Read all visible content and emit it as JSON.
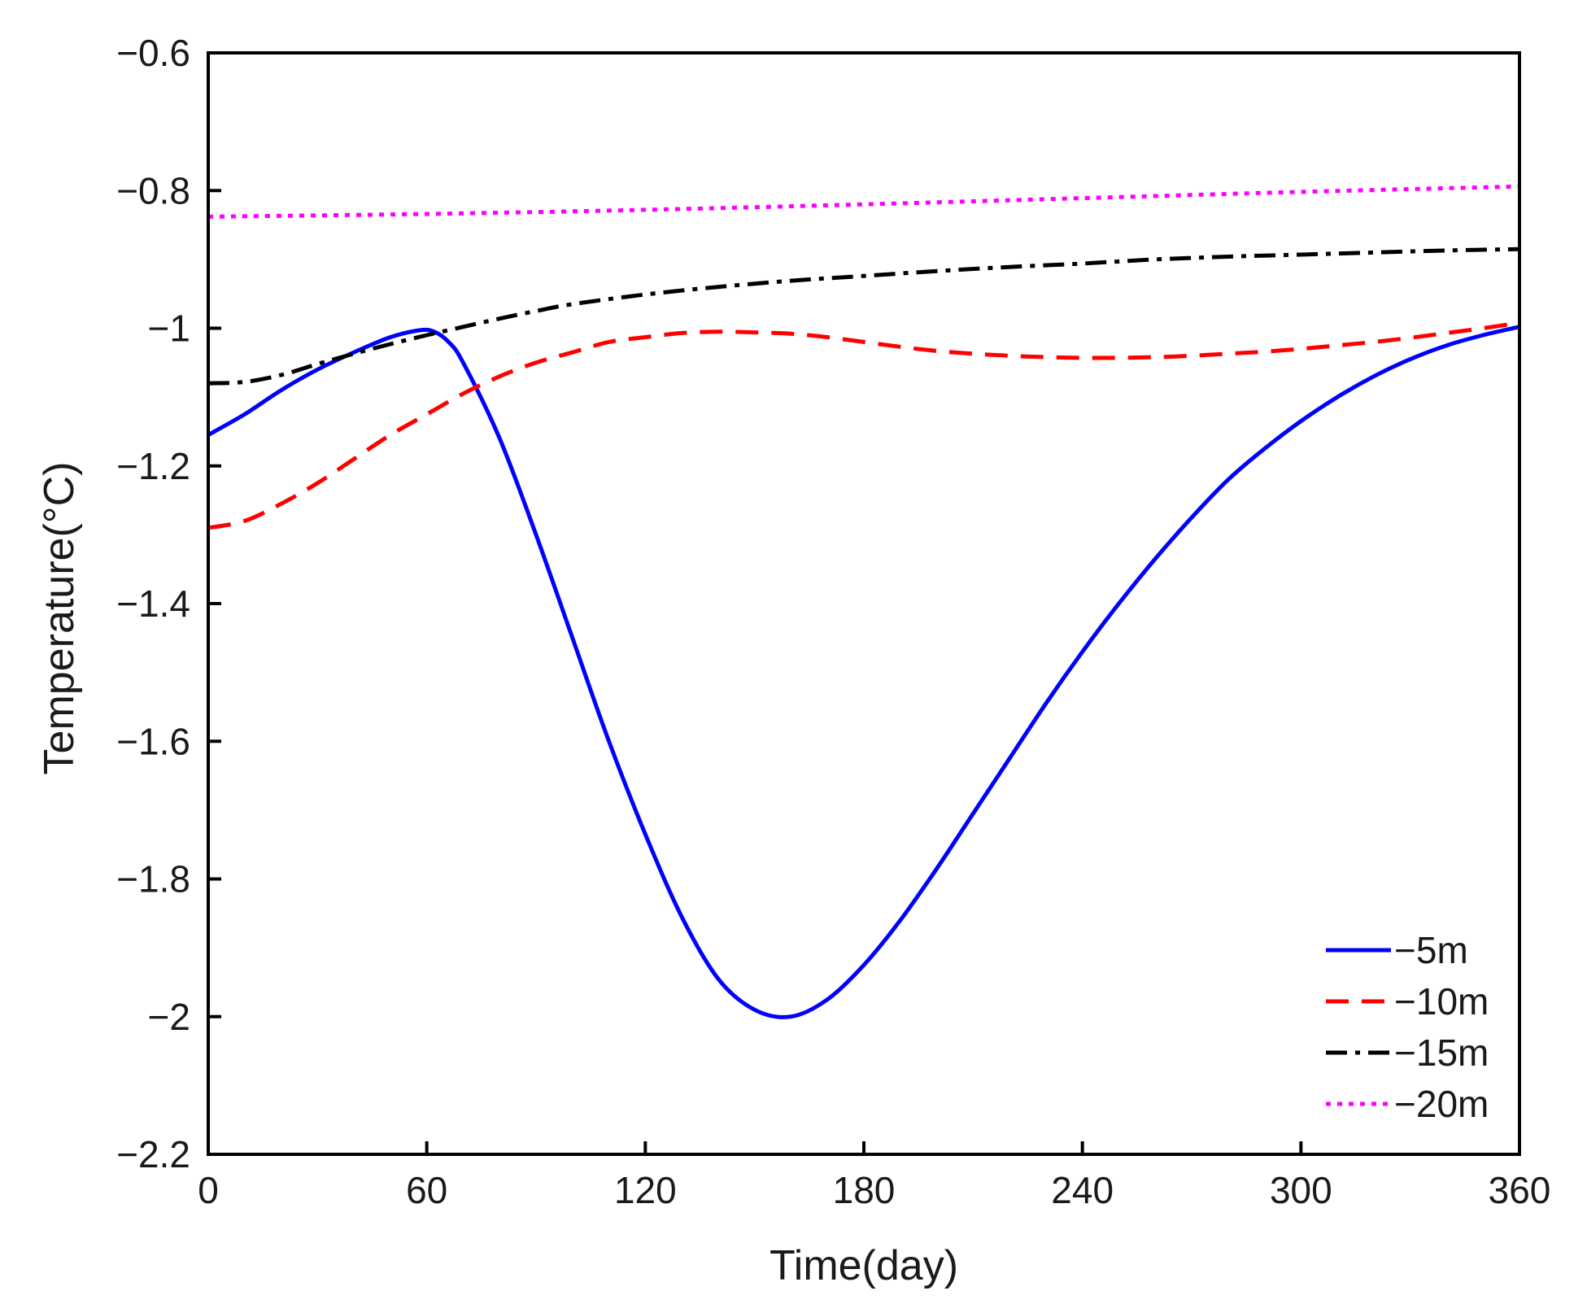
{
  "chart_data": {
    "type": "line",
    "title": "",
    "xlabel": "Time(day)",
    "ylabel": "Temperature(°C)",
    "xlim": [
      0,
      360
    ],
    "ylim": [
      -2.2,
      -0.6
    ],
    "xticks": [
      0,
      60,
      120,
      180,
      240,
      300,
      360
    ],
    "xtick_labels": [
      "0",
      "60",
      "120",
      "180",
      "240",
      "300",
      "360"
    ],
    "yticks": [
      -0.6,
      -0.8,
      -1.0,
      -1.2,
      -1.4,
      -1.6,
      -1.8,
      -2.0,
      -2.2
    ],
    "ytick_labels": [
      "−0.6",
      "−0.8",
      "−1",
      "−1.2",
      "−1.4",
      "−1.6",
      "−1.8",
      "−2",
      "−2.2"
    ],
    "grid": false,
    "legend_position": "bottom-right",
    "series": [
      {
        "name": "−5m",
        "color": "#0000ff",
        "style": "solid",
        "x": [
          0,
          10,
          20,
          30,
          40,
          50,
          58,
          62,
          66,
          70,
          80,
          90,
          100,
          110,
          120,
          130,
          140,
          150,
          160,
          170,
          180,
          190,
          200,
          210,
          220,
          230,
          240,
          250,
          260,
          270,
          280,
          290,
          300,
          310,
          320,
          330,
          340,
          350,
          360
        ],
        "y": [
          -1.155,
          -1.125,
          -1.09,
          -1.06,
          -1.035,
          -1.013,
          -1.003,
          -1.005,
          -1.02,
          -1.05,
          -1.16,
          -1.3,
          -1.45,
          -1.6,
          -1.735,
          -1.855,
          -1.945,
          -1.99,
          -2.0,
          -1.975,
          -1.925,
          -1.86,
          -1.785,
          -1.705,
          -1.625,
          -1.545,
          -1.47,
          -1.4,
          -1.335,
          -1.275,
          -1.22,
          -1.175,
          -1.135,
          -1.1,
          -1.07,
          -1.045,
          -1.025,
          -1.01,
          -0.998
        ]
      },
      {
        "name": "−10m",
        "color": "#ff0000",
        "style": "dashed",
        "x": [
          0,
          10,
          20,
          30,
          40,
          50,
          60,
          70,
          80,
          90,
          100,
          110,
          120,
          130,
          140,
          150,
          160,
          170,
          180,
          190,
          200,
          210,
          220,
          230,
          240,
          250,
          260,
          270,
          280,
          290,
          300,
          310,
          320,
          330,
          340,
          350,
          360
        ],
        "y": [
          -1.29,
          -1.28,
          -1.255,
          -1.225,
          -1.19,
          -1.155,
          -1.125,
          -1.095,
          -1.07,
          -1.05,
          -1.035,
          -1.02,
          -1.013,
          -1.007,
          -1.005,
          -1.006,
          -1.008,
          -1.013,
          -1.02,
          -1.027,
          -1.033,
          -1.037,
          -1.04,
          -1.042,
          -1.043,
          -1.043,
          -1.042,
          -1.04,
          -1.037,
          -1.034,
          -1.03,
          -1.025,
          -1.02,
          -1.014,
          -1.007,
          -1.0,
          -0.992
        ]
      },
      {
        "name": "−15m",
        "color": "#000000",
        "style": "dashdot",
        "x": [
          0,
          10,
          20,
          30,
          40,
          50,
          60,
          70,
          80,
          90,
          100,
          120,
          140,
          160,
          180,
          200,
          220,
          240,
          260,
          280,
          300,
          320,
          340,
          360
        ],
        "y": [
          -1.08,
          -1.078,
          -1.068,
          -1.052,
          -1.037,
          -1.023,
          -1.01,
          -0.998,
          -0.986,
          -0.975,
          -0.965,
          -0.951,
          -0.94,
          -0.931,
          -0.924,
          -0.917,
          -0.911,
          -0.906,
          -0.9,
          -0.896,
          -0.893,
          -0.89,
          -0.887,
          -0.885
        ]
      },
      {
        "name": "−20m",
        "color": "#ff00ff",
        "style": "dotted",
        "x": [
          0,
          60,
          120,
          180,
          240,
          300,
          360
        ],
        "y": [
          -0.838,
          -0.834,
          -0.828,
          -0.82,
          -0.811,
          -0.802,
          -0.794
        ]
      }
    ]
  }
}
